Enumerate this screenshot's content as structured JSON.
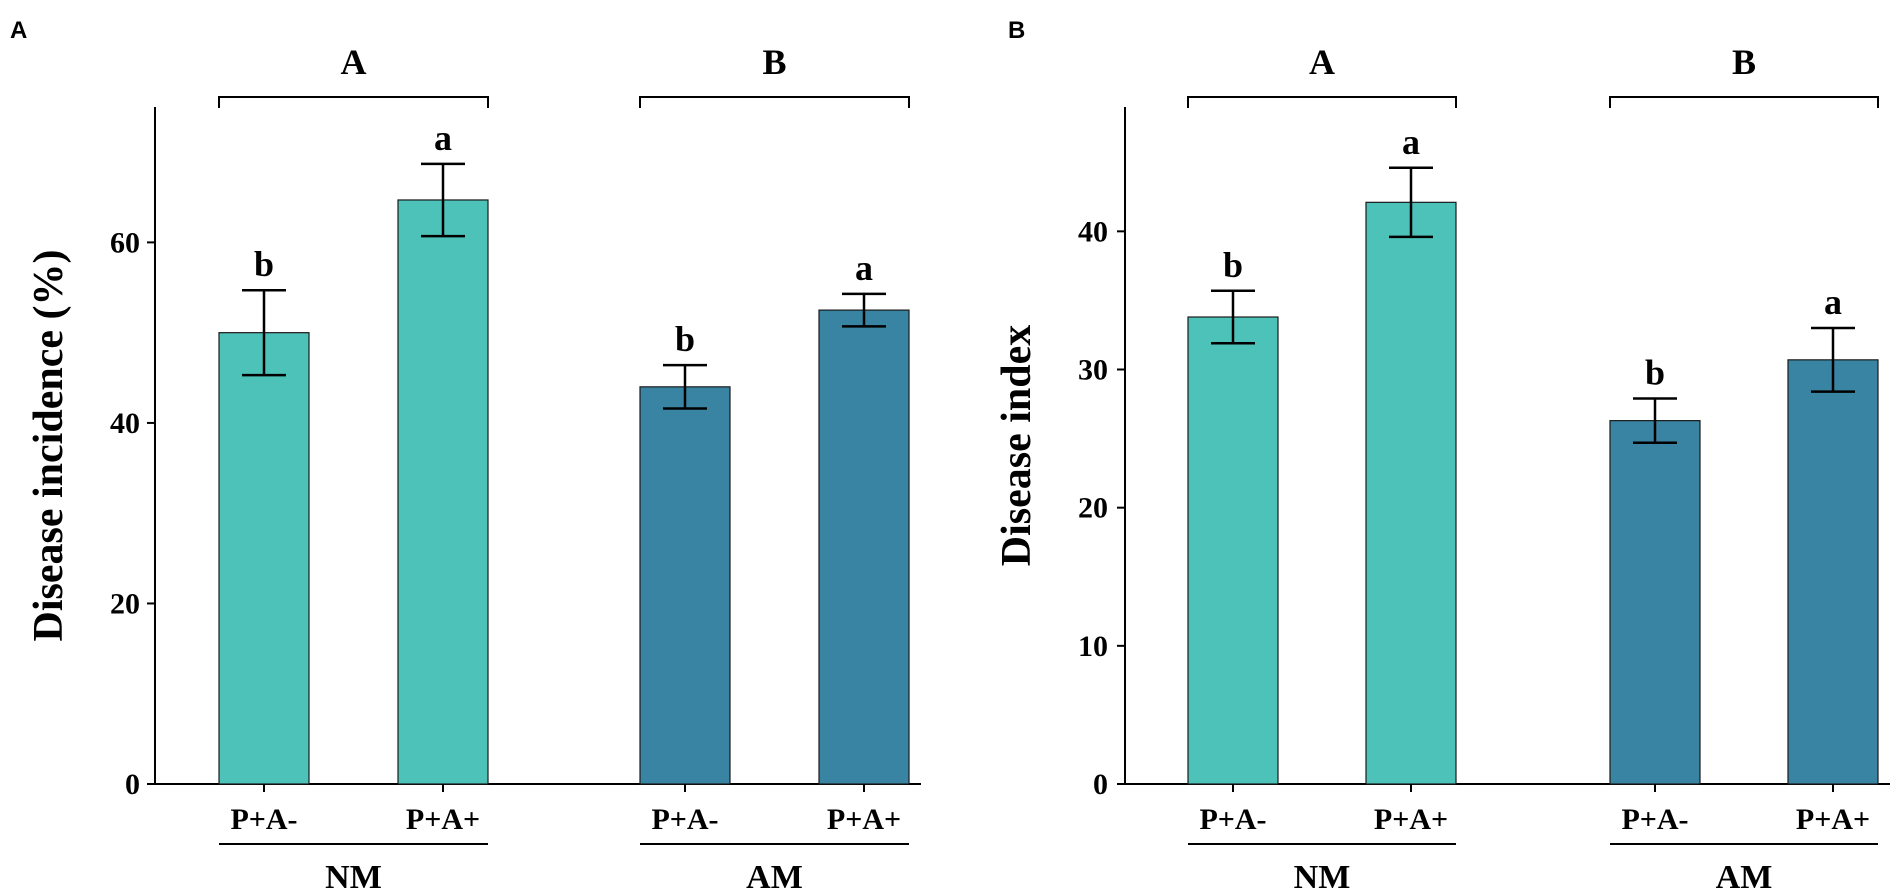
{
  "chart_data": [
    {
      "panel_label": "A",
      "type": "bar",
      "ylabel": "Disease incidence (%)",
      "ylim": [
        0,
        75
      ],
      "yticks": [
        0,
        20,
        40,
        60
      ],
      "categories": [
        "P+A-",
        "P+A+",
        "P+A-",
        "P+A+"
      ],
      "values": [
        50.0,
        64.7,
        44.0,
        52.5
      ],
      "errors": [
        4.7,
        4.0,
        2.4,
        1.8
      ],
      "significance": [
        "b",
        "a",
        "b",
        "a"
      ],
      "bar_colors": [
        "#4dc2b8",
        "#4dc2b8",
        "#3884a2",
        "#3884a2"
      ],
      "groups": [
        {
          "name": "NM",
          "letter": "A",
          "indices": [
            0,
            1
          ]
        },
        {
          "name": "AM",
          "letter": "B",
          "indices": [
            2,
            3
          ]
        }
      ]
    },
    {
      "panel_label": "B",
      "type": "bar",
      "ylabel": "Disease index",
      "ylim": [
        0,
        49
      ],
      "yticks": [
        0,
        10,
        20,
        30,
        40
      ],
      "categories": [
        "P+A-",
        "P+A+",
        "P+A-",
        "P+A+"
      ],
      "values": [
        33.8,
        42.1,
        26.3,
        30.7
      ],
      "errors": [
        1.9,
        2.5,
        1.6,
        2.3
      ],
      "significance": [
        "b",
        "a",
        "b",
        "a"
      ],
      "bar_colors": [
        "#4dc2b8",
        "#4dc2b8",
        "#3884a2",
        "#3884a2"
      ],
      "groups": [
        {
          "name": "NM",
          "letter": "A",
          "indices": [
            0,
            1
          ]
        },
        {
          "name": "AM",
          "letter": "B",
          "indices": [
            2,
            3
          ]
        }
      ]
    }
  ]
}
